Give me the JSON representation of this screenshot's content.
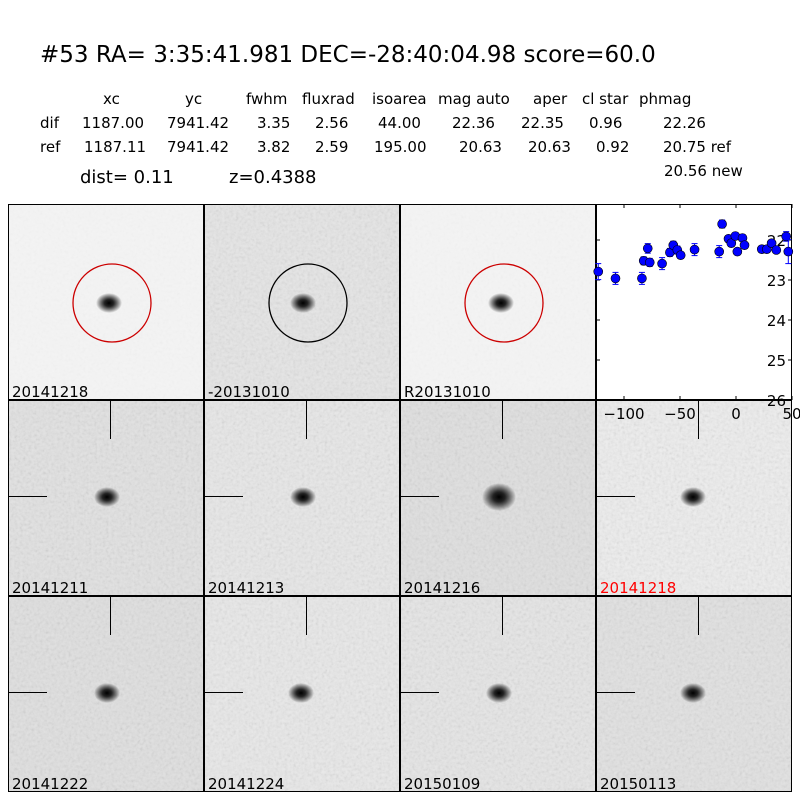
{
  "header": {
    "title": "#53   RA= 3:35:41.981 DEC=-28:40:04.98      score=60.0",
    "columns": [
      "xc",
      "yc",
      "fwhm",
      "fluxrad",
      "isoarea",
      "mag auto",
      "aper",
      "cl star",
      "phmag"
    ],
    "rows": [
      {
        "label": "dif",
        "values": [
          "1187.00",
          "7941.42",
          "3.35",
          "2.56",
          "44.00",
          "22.36",
          "22.35",
          "0.96",
          "22.26"
        ]
      },
      {
        "label": "ref",
        "values": [
          "1187.11",
          "7941.42",
          "3.82",
          "2.59",
          "195.00",
          "20.63",
          "20.63",
          "0.92",
          "20.75 ref"
        ]
      }
    ],
    "new_mag": "20.56 new",
    "dist": "dist=  0.11",
    "z": "z=0.4388"
  },
  "stamps": [
    {
      "label": "20141218",
      "circle": "#cc0000",
      "bg": "#f4f4f4"
    },
    {
      "label": "-20131010",
      "circle": "#000000",
      "bg": "#e6e6e6"
    },
    {
      "label": "R20131010",
      "circle": "#cc0000",
      "bg": "#f4f4f4"
    },
    {
      "label": "20141211",
      "bg": "#e2e2e2"
    },
    {
      "label": "20141213",
      "bg": "#e8e8e8"
    },
    {
      "label": "20141216",
      "bg": "#e0e0e0"
    },
    {
      "label": "20141218",
      "bg": "#eeeeee",
      "label_color": "#ff0000"
    },
    {
      "label": "20141222",
      "bg": "#e0e0e0"
    },
    {
      "label": "20141224",
      "bg": "#e9e9e9"
    },
    {
      "label": "20150109",
      "bg": "#e6e6e6"
    },
    {
      "label": "20150113",
      "bg": "#e2e2e2"
    }
  ],
  "chart_data": {
    "type": "scatter",
    "xlim": [
      -125,
      50
    ],
    "ylim": [
      26,
      21.1
    ],
    "y_inverted": true,
    "xticks": [
      -100,
      -50,
      0,
      50
    ],
    "yticks": [
      22,
      23,
      24,
      25,
      26
    ],
    "marker_color": "#0000ff",
    "grid": false,
    "points": [
      [
        -123,
        22.79,
        0.2
      ],
      [
        -107.6,
        22.96,
        0.15
      ],
      [
        -84,
        22.96,
        0.15
      ],
      [
        -82.4,
        22.52,
        0.1
      ],
      [
        -78.8,
        22.21,
        0.12
      ],
      [
        -77,
        22.56,
        0.1
      ],
      [
        -66,
        22.59,
        0.15
      ],
      [
        -59,
        22.31,
        0.1
      ],
      [
        -56,
        22.13,
        0.1
      ],
      [
        -52.4,
        22.25,
        0.1
      ],
      [
        -49.4,
        22.38,
        0.08
      ],
      [
        -37,
        22.24,
        0.15
      ],
      [
        -15,
        22.29,
        0.15
      ],
      [
        -12.4,
        21.6,
        0.1
      ],
      [
        -6.7,
        21.97,
        0.08
      ],
      [
        -4.2,
        22.08,
        0.08
      ],
      [
        -0.6,
        21.9,
        0.08
      ],
      [
        1.2,
        22.29,
        0.08
      ],
      [
        5.8,
        21.95,
        0.08
      ],
      [
        7.6,
        22.13,
        0.08
      ],
      [
        23,
        22.23,
        0.08
      ],
      [
        27.5,
        22.23,
        0.08
      ],
      [
        31.8,
        22.08,
        0.08
      ],
      [
        36,
        22.25,
        0.08
      ],
      [
        44.8,
        21.91,
        0.12
      ],
      [
        46.7,
        22.29,
        0.3
      ]
    ]
  }
}
